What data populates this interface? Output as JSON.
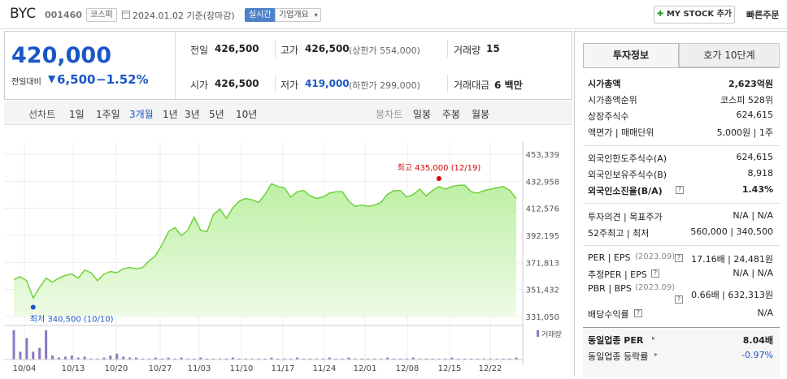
{
  "header": {
    "company_name": "BYC",
    "code": "001460",
    "market": "코스피",
    "date_text": "2024.01.02 기준(장마감)",
    "realtime_badge": "실시간",
    "company_info": "기업개요",
    "mystock_label": "MY STOCK 추가",
    "quick_order": "빠른주문"
  },
  "price": {
    "current": "420,000",
    "compare_label": "전일대비",
    "change": "6,500",
    "change_pct": "−1.52%"
  },
  "quote": {
    "prev_label": "전일",
    "prev_value": "426,500",
    "high_label": "고가",
    "high_value": "426,500",
    "upper_limit": "(상한가 554,000)",
    "volume_label": "거래량",
    "volume_value": "15",
    "open_label": "시가",
    "open_value": "426,500",
    "low_label": "저가",
    "low_value": "419,000",
    "lower_limit": "(하한가 299,000)",
    "amount_label": "거래대금",
    "amount_value": "6 백만"
  },
  "chart_tabs": {
    "line_label": "선차트",
    "items": [
      "1일",
      "1주일",
      "3개월",
      "1년",
      "3년",
      "5년",
      "10년"
    ],
    "active": "3개월",
    "candle_label": "봉차트",
    "candle_items": [
      "일봉",
      "주봉",
      "월봉"
    ]
  },
  "chart_data": {
    "type": "area",
    "x_tick_labels": [
      "10/04",
      "10/13",
      "10/20",
      "10/27",
      "11/03",
      "11/10",
      "11/17",
      "11/24",
      "12/01",
      "12/08",
      "12/15",
      "12/22"
    ],
    "y_tick_labels": [
      "453,339",
      "432,958",
      "412,576",
      "392,195",
      "371,813",
      "351,432",
      "331,050"
    ],
    "ylim": [
      331050,
      453339
    ],
    "values": [
      359000,
      361000,
      358000,
      345000,
      353000,
      360000,
      357000,
      360000,
      362000,
      363000,
      360000,
      366000,
      364000,
      358000,
      363000,
      365000,
      364000,
      367000,
      368000,
      367000,
      368000,
      373000,
      377000,
      385000,
      395000,
      398000,
      392000,
      396000,
      406000,
      396000,
      395000,
      408000,
      412000,
      405000,
      413000,
      418000,
      420000,
      419000,
      417000,
      423000,
      431000,
      429000,
      428000,
      421000,
      425000,
      426000,
      422000,
      420000,
      421000,
      424000,
      425000,
      425000,
      418000,
      414000,
      415000,
      414000,
      415000,
      417000,
      423000,
      426000,
      426000,
      421000,
      423000,
      427000,
      422000,
      426000,
      429000,
      427000,
      429000,
      430000,
      430000,
      425000,
      424000,
      426000,
      427000,
      428000,
      429000,
      426000,
      420000
    ],
    "volume": [
      30,
      8,
      22,
      8,
      12,
      30,
      4,
      2,
      3,
      4,
      2,
      3,
      1,
      1,
      2,
      4,
      6,
      3,
      2,
      2,
      1,
      1,
      2,
      1,
      2,
      1,
      2,
      1,
      1,
      2,
      1,
      1,
      1,
      1,
      2,
      1,
      1,
      1,
      1,
      1,
      2,
      1,
      1,
      1,
      2,
      1,
      1,
      1,
      1,
      2,
      1,
      1,
      2,
      1,
      1,
      1,
      1,
      1,
      2,
      1,
      1,
      1,
      2,
      1,
      1,
      1,
      1,
      1,
      2,
      1,
      1,
      1,
      1,
      1,
      1,
      1,
      1,
      1,
      2
    ],
    "high_annotation": "최고 435,000 (12/19)",
    "high_value": 435000,
    "high_index": 66,
    "low_annotation": "최저 340,500 (10/10)",
    "low_value": 340500,
    "low_index": 3,
    "volume_legend": "거래량",
    "colors": {
      "line": "#6fd13b",
      "area_top": "#bdf0a4",
      "area_bottom": "#eefbe6",
      "volume": "#8a78c0",
      "high": "#d60000",
      "low": "#1a57c6"
    }
  },
  "right_tabs": {
    "invest": "투자정보",
    "orderbook": "호가 10단계"
  },
  "invest": {
    "market_cap_label": "시가총액",
    "market_cap_value": "2,623억원",
    "rank_label": "시가총액순위",
    "rank_value": "코스피 528위",
    "shares_label": "상장주식수",
    "shares_value": "624,615",
    "par_label": "액면가 | 매매단위",
    "par_value": "5,000원 | 1주",
    "foreign_limit_label": "외국인한도주식수(A)",
    "foreign_limit_value": "624,615",
    "foreign_hold_label": "외국인보유주식수(B)",
    "foreign_hold_value": "8,918",
    "foreign_ratio_label": "외국인소진율(B/A)",
    "foreign_ratio_value": "1.43%",
    "opinion_label": "투자의견 | 목표주가",
    "opinion_value": "N/A | N/A",
    "w52_label": "52주최고 | 최저",
    "w52_value": "560,000 | 340,500",
    "per_label": "PER | EPS",
    "per_date": "(2023.09)",
    "per_value": "17.16배 | 24,481원",
    "est_per_label": "추정PER | EPS",
    "est_per_value": "N/A | N/A",
    "pbr_label": "PBR | BPS",
    "pbr_date": "(2023.09)",
    "pbr_value": "0.66배 | 632,313원",
    "div_label": "배당수익률",
    "div_value": "N/A",
    "sector_per_label": "동일업종 PER",
    "sector_per_value": "8.04배",
    "sector_rate_label": "동일업종 등락률",
    "sector_rate_value": "-0.97%"
  }
}
